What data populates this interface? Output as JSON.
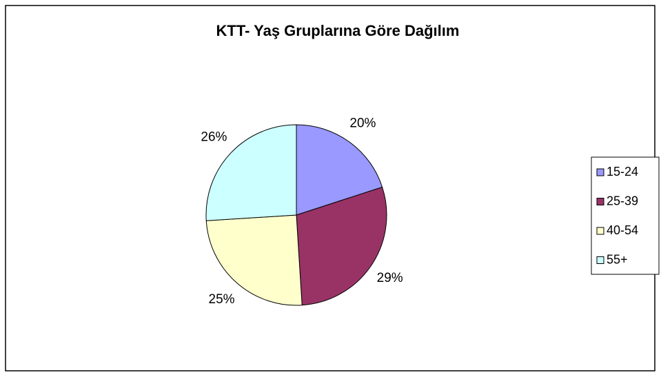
{
  "chart_data": {
    "type": "pie",
    "title": "KTT- Yaş Gruplarına Göre Dağılım",
    "categories": [
      "15-24",
      "25-39",
      "40-54",
      "55+"
    ],
    "values": [
      20,
      29,
      25,
      26
    ],
    "value_labels": [
      "20%",
      "29%",
      "25%",
      "26%"
    ],
    "colors": [
      "#9999ff",
      "#993366",
      "#ffffcc",
      "#ccffff"
    ],
    "legend": "right"
  }
}
